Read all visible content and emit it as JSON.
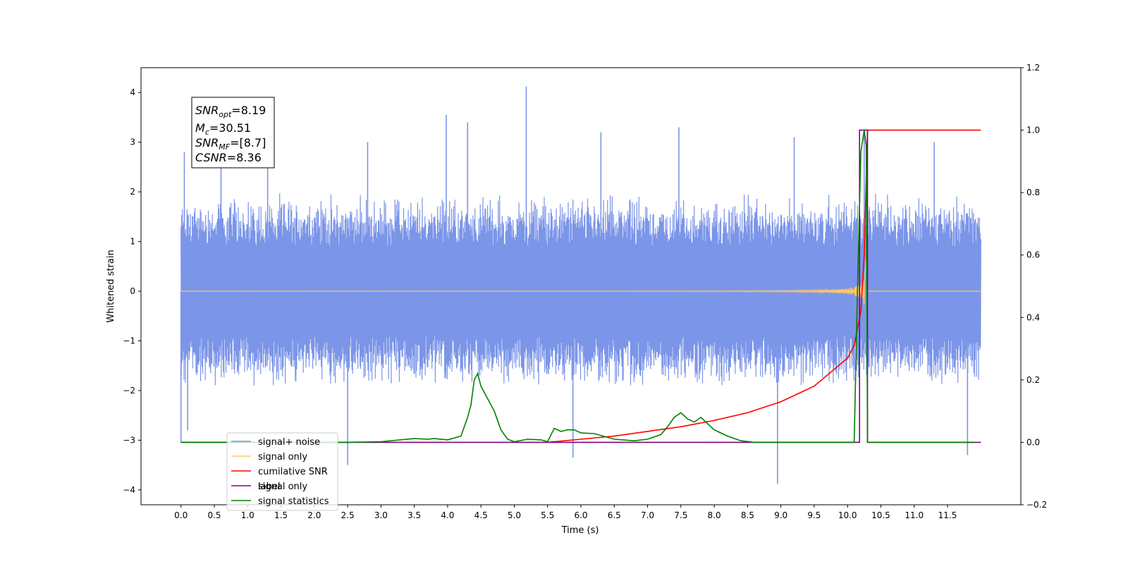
{
  "chart_data": {
    "type": "line",
    "xlabel": "Time (s)",
    "ylabel": "Whitened strain",
    "xlim": [
      -0.6,
      12.6
    ],
    "ylim": [
      -4.3,
      4.5
    ],
    "ylim_right": [
      -0.2,
      1.2
    ],
    "x_ticks": [
      "0.0",
      "0.5",
      "1.0",
      "1.5",
      "2.0",
      "2.5",
      "3.0",
      "3.5",
      "4.0",
      "4.5",
      "5.0",
      "5.5",
      "6.0",
      "6.5",
      "7.0",
      "7.5",
      "8.0",
      "8.5",
      "9.0",
      "9.5",
      "10.0",
      "10.5",
      "11.0",
      "11.5"
    ],
    "y_ticks": [
      "4",
      "3",
      "2",
      "1",
      "0",
      "−1",
      "−2",
      "−3",
      "−4"
    ],
    "y_ticks_right": [
      "1.2",
      "1.0",
      "0.8",
      "0.6",
      "0.4",
      "0.2",
      "0.0",
      "−0.2"
    ],
    "annotation": {
      "snr_opt_sym": "SNR",
      "snr_opt_sub": "opt",
      "snr_opt_val": "=8.19",
      "mc_sym": "M",
      "mc_sub": "c",
      "mc_val": "=30.51",
      "snr_mf_sym": "SNR",
      "snr_mf_sub": "MF",
      "snr_mf_val": "=[8.7]",
      "csnr_sym": "CSNR",
      "csnr_val": "=8.36"
    },
    "legend": {
      "placement": "lower-left",
      "entries": [
        "signal+ noise",
        "signal only",
        "cumilative SNR",
        "label",
        "signal statistics"
      ],
      "hidden_entry": "signal only"
    },
    "noise_envelope": {
      "x_range": [
        0.0,
        12.0
      ],
      "typical_max": 2.0,
      "typical_min": -1.9,
      "spikes": [
        [
          0.05,
          2.8
        ],
        [
          0.0,
          -3.05
        ],
        [
          0.1,
          -2.8
        ],
        [
          2.5,
          -3.5
        ],
        [
          3.98,
          3.55
        ],
        [
          4.3,
          3.4
        ],
        [
          5.18,
          4.12
        ],
        [
          5.88,
          -3.35
        ],
        [
          7.47,
          3.3
        ],
        [
          8.95,
          -3.88
        ],
        [
          10.25,
          3.25
        ],
        [
          11.8,
          -3.3
        ],
        [
          0.6,
          3.1
        ],
        [
          1.3,
          3.05
        ],
        [
          2.8,
          3.0
        ],
        [
          6.3,
          3.2
        ],
        [
          9.2,
          3.1
        ],
        [
          11.3,
          3.0
        ]
      ]
    },
    "series": [
      {
        "name": "signal only",
        "axis": "left",
        "color": "#ffc766",
        "x_range": [
          0.0,
          12.0
        ],
        "chirp_end": 10.3,
        "amplitude_max": 0.9
      },
      {
        "name": "cumilative SNR",
        "axis": "right",
        "color": "#ff0000",
        "x": [
          5.5,
          6.0,
          6.5,
          7.0,
          7.5,
          8.0,
          8.5,
          9.0,
          9.5,
          10.0,
          10.1,
          10.2,
          10.25,
          10.28,
          10.3,
          12.0
        ],
        "values": [
          0.0,
          0.01,
          0.02,
          0.035,
          0.05,
          0.07,
          0.095,
          0.13,
          0.18,
          0.27,
          0.31,
          0.42,
          0.6,
          0.85,
          1.0,
          1.0
        ]
      },
      {
        "name": "label",
        "axis": "right",
        "color": "#800080",
        "x": [
          0.0,
          10.18,
          10.18,
          10.3,
          10.3,
          12.0
        ],
        "values": [
          0.0,
          0.0,
          1.0,
          1.0,
          0.0,
          0.0
        ]
      },
      {
        "name": "signal statistics",
        "axis": "right",
        "color": "#008000",
        "x": [
          0.0,
          0.2,
          0.5,
          1.0,
          1.5,
          2.0,
          2.5,
          3.0,
          3.5,
          3.7,
          3.8,
          4.0,
          4.2,
          4.3,
          4.35,
          4.4,
          4.45,
          4.5,
          4.6,
          4.7,
          4.8,
          4.9,
          5.0,
          5.2,
          5.4,
          5.5,
          5.6,
          5.7,
          5.8,
          5.9,
          6.0,
          6.2,
          6.5,
          6.8,
          7.0,
          7.2,
          7.3,
          7.4,
          7.5,
          7.6,
          7.7,
          7.8,
          7.9,
          8.0,
          8.2,
          8.4,
          8.6,
          9.0,
          10.0,
          10.1,
          10.15,
          10.2,
          10.25,
          10.28,
          10.3,
          10.35,
          11.0,
          11.9
        ],
        "values": [
          0.0,
          0.0,
          0.0,
          0.0,
          0.0,
          0.0,
          0.0,
          0.002,
          0.012,
          0.01,
          0.012,
          0.008,
          0.02,
          0.08,
          0.12,
          0.2,
          0.22,
          0.18,
          0.14,
          0.1,
          0.04,
          0.01,
          0.002,
          0.01,
          0.008,
          0.002,
          0.045,
          0.035,
          0.04,
          0.04,
          0.03,
          0.028,
          0.01,
          0.005,
          0.01,
          0.025,
          0.05,
          0.08,
          0.095,
          0.075,
          0.065,
          0.08,
          0.06,
          0.04,
          0.02,
          0.005,
          0.0,
          0.0,
          0.0,
          0.0,
          0.5,
          0.93,
          1.0,
          0.95,
          0.0,
          0.0,
          0.0,
          0.0
        ]
      }
    ]
  },
  "colors": {
    "noise": "#7b95e8",
    "signal": "#ffc766",
    "snr": "#ff0000",
    "label": "#800080",
    "stats": "#008000"
  }
}
